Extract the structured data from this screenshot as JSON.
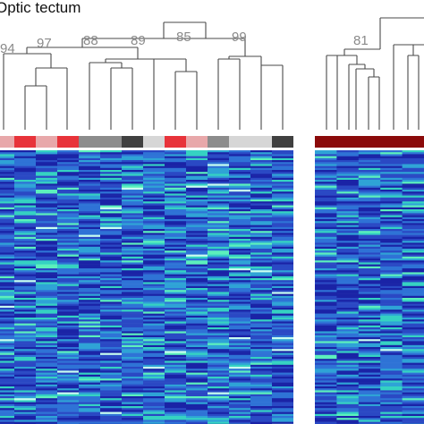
{
  "title": "Optic tectum",
  "panels": [
    {
      "id": "left",
      "bootstrap_labels": [
        "94",
        "97",
        "88",
        "89",
        "85",
        "99"
      ],
      "annotation_colors": [
        "#e8a8aa",
        "#e8333a",
        "#e8a8aa",
        "#e8333a",
        "#8c8c8c",
        "#8c8c8c",
        "#404040",
        "#d6d6d6",
        "#e8333a",
        "#e8a8aa",
        "#8c8c8c",
        "#d6d6d6",
        "#d6d6d6",
        "#404040"
      ]
    },
    {
      "id": "right",
      "bootstrap_labels": [
        "81"
      ],
      "annotation_colors": [
        "#8b0a0a",
        "#8b0a0a",
        "#8b0a0a",
        "#8b0a0a",
        "#8b0a0a"
      ]
    }
  ],
  "heatmap_palette": [
    "#1a23a6",
    "#2a49c4",
    "#2f73d6",
    "#2fa3d6",
    "#35d2c2",
    "#5cf0bc",
    "#c8fff0"
  ]
}
